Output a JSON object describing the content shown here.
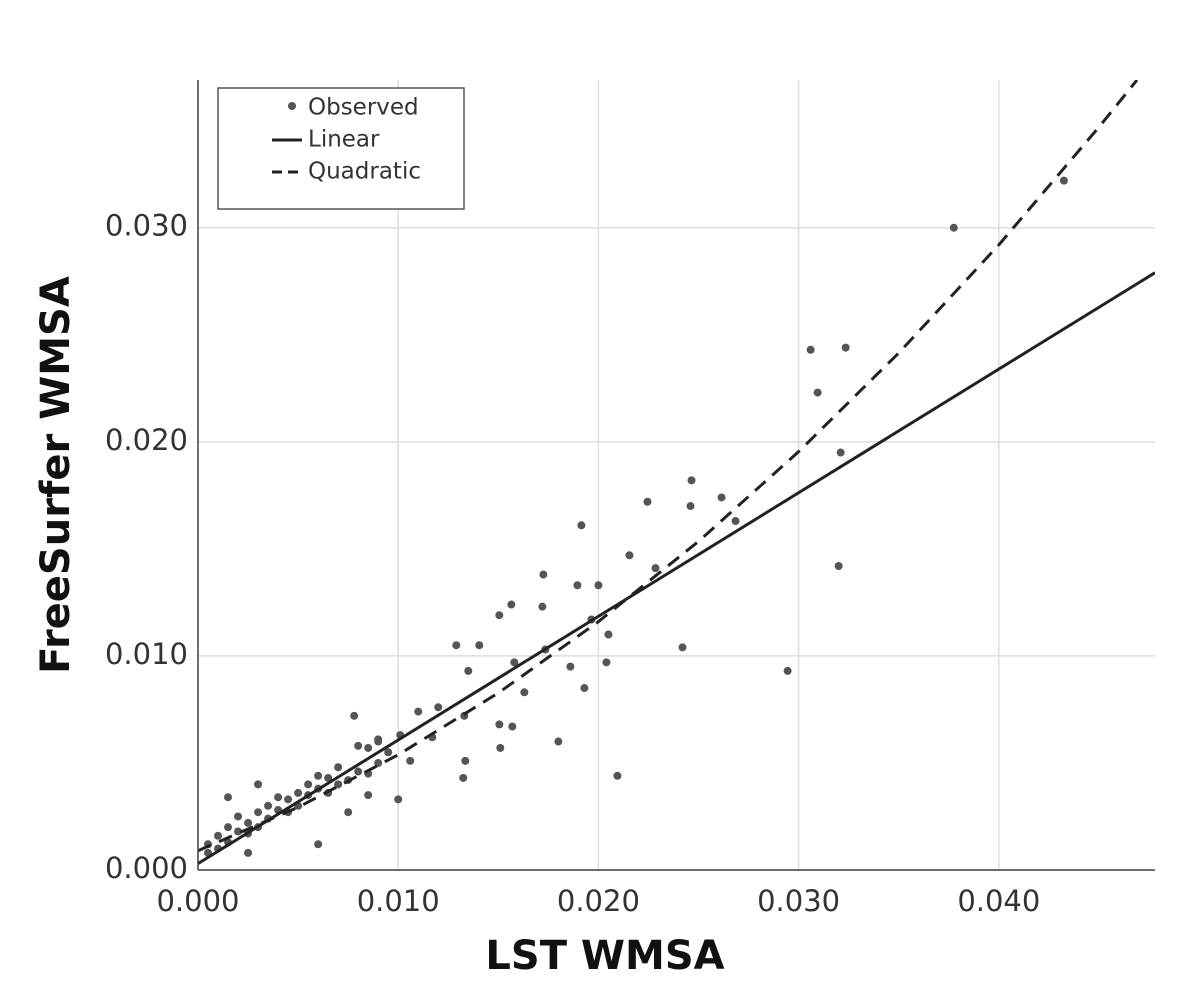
{
  "chart_data": {
    "type": "scatter",
    "x_label": "LST WMSA",
    "y_label": "FreeSurfer WMSA",
    "xlim": [
      0,
      0.0478
    ],
    "ylim": [
      0,
      0.0369
    ],
    "xticks": [
      {
        "value": 0,
        "label": "0.000"
      },
      {
        "value": 0.01,
        "label": "0.010"
      },
      {
        "value": 0.02,
        "label": "0.020"
      },
      {
        "value": 0.03,
        "label": "0.030"
      },
      {
        "value": 0.04,
        "label": "0.040"
      }
    ],
    "yticks": [
      {
        "value": 0,
        "label": "0.000"
      },
      {
        "value": 0.01,
        "label": "0.010"
      },
      {
        "value": 0.02,
        "label": "0.020"
      },
      {
        "value": 0.03,
        "label": "0.030"
      }
    ],
    "grid": true,
    "legend": "upper left",
    "series": [
      {
        "name": "Observed",
        "kind": "points",
        "color": "#555555",
        "x": [
          0.04325,
          0.03775,
          0.0306,
          0.03235,
          0.03095,
          0.0321,
          0.032,
          0.02945,
          0.02465,
          0.0246,
          0.02615,
          0.02685,
          0.02245,
          0.01915,
          0.02155,
          0.02285,
          0.0242,
          0.01725,
          0.01895,
          0.02,
          0.01565,
          0.0172,
          0.01505,
          0.01965,
          0.0205,
          0.0129,
          0.01405,
          0.01735,
          0.0186,
          0.0204,
          0.0135,
          0.0158,
          0.0163,
          0.0193,
          0.018,
          0.02095,
          0.01505,
          0.0157,
          0.0151,
          0.0133,
          0.01335,
          0.01325,
          0.012,
          0.0117,
          0.011,
          0.0078,
          0.0101,
          0.009,
          0.0106,
          0.01,
          0.0005,
          0.001,
          0.001,
          0.0015,
          0.0015,
          0.002,
          0.002,
          0.0025,
          0.0025,
          0.003,
          0.003,
          0.003,
          0.0035,
          0.0035,
          0.004,
          0.004,
          0.0045,
          0.0045,
          0.005,
          0.005,
          0.0055,
          0.0055,
          0.006,
          0.006,
          0.0065,
          0.0065,
          0.007,
          0.007,
          0.0075,
          0.008,
          0.008,
          0.0085,
          0.0085,
          0.009,
          0.009,
          0.0095,
          0.006,
          0.0025,
          0.0005,
          0.0015,
          0.0075,
          0.0085
        ],
        "values": [
          0.0322,
          0.03,
          0.0243,
          0.0244,
          0.0223,
          0.0195,
          0.0142,
          0.0093,
          0.0182,
          0.017,
          0.0174,
          0.0163,
          0.0172,
          0.0161,
          0.0147,
          0.0141,
          0.0104,
          0.0138,
          0.0133,
          0.0133,
          0.0124,
          0.0123,
          0.0119,
          0.0117,
          0.011,
          0.0105,
          0.0105,
          0.0103,
          0.0095,
          0.0097,
          0.0093,
          0.0097,
          0.0083,
          0.0085,
          0.006,
          0.0044,
          0.0068,
          0.0067,
          0.0057,
          0.0072,
          0.0051,
          0.0043,
          0.0076,
          0.0062,
          0.0074,
          0.0072,
          0.0063,
          0.006,
          0.0051,
          0.0033,
          0.0012,
          0.001,
          0.0016,
          0.0013,
          0.002,
          0.0018,
          0.0025,
          0.0017,
          0.0022,
          0.002,
          0.0027,
          0.004,
          0.0024,
          0.003,
          0.0028,
          0.0034,
          0.0027,
          0.0033,
          0.003,
          0.0036,
          0.0035,
          0.004,
          0.0038,
          0.0044,
          0.0036,
          0.0043,
          0.004,
          0.0048,
          0.0042,
          0.0046,
          0.0058,
          0.0045,
          0.0057,
          0.005,
          0.0061,
          0.0055,
          0.0012,
          0.0008,
          0.0008,
          0.0034,
          0.0027,
          0.0035
        ]
      },
      {
        "name": "Linear",
        "kind": "line",
        "dash": "solid",
        "color": "#222222",
        "x": [
          0,
          0.0478
        ],
        "values": [
          0.0003,
          0.0279
        ]
      },
      {
        "name": "Quadratic",
        "kind": "line",
        "dash": "dashed",
        "color": "#222222",
        "x": [
          0,
          0.005,
          0.01,
          0.015,
          0.02,
          0.025,
          0.03,
          0.035,
          0.04,
          0.045,
          0.0469
        ],
        "values": [
          0.0009,
          0.00293,
          0.00538,
          0.00827,
          0.0116,
          0.01535,
          0.01954,
          0.02415,
          0.0292,
          0.0347,
          0.0369
        ]
      }
    ]
  }
}
